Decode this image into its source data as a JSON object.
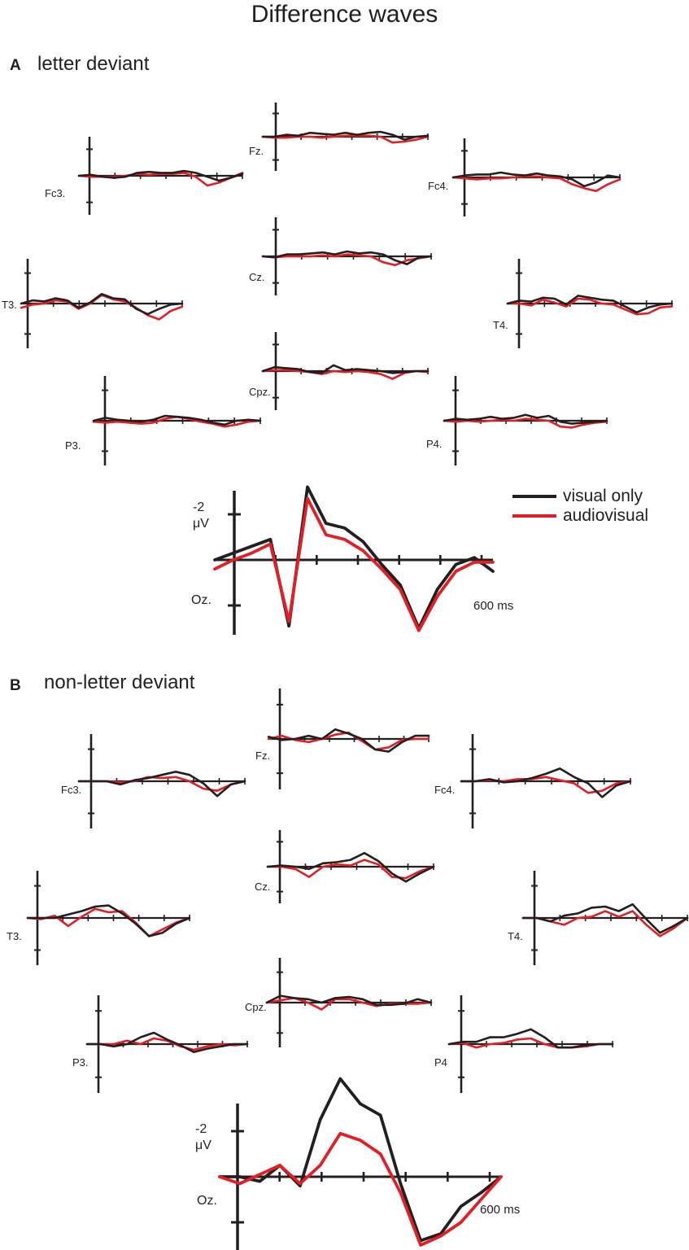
{
  "title": "Difference waves",
  "panels": [
    {
      "letter": "A",
      "title": "letter deviant"
    },
    {
      "letter": "B",
      "title": "non-letter deviant"
    }
  ],
  "legend": {
    "items": [
      {
        "label": "visual only",
        "color": "#231f20"
      },
      {
        "label": "audiovisual",
        "color": "#e31e24"
      }
    ]
  },
  "colors": {
    "visual_only": "#231f20",
    "audiovisual": "#e31e24"
  },
  "chart_data": [
    {
      "type": "line",
      "panel": "A",
      "title": "letter deviant",
      "scale": {
        "y_label": "-2 μV",
        "x_label": "600 ms",
        "y_tick": -2,
        "x_max_ms": 600
      },
      "electrodes": [
        {
          "name": "Fc3.",
          "visual_only": [
            0,
            -0.1,
            0.1,
            0.2,
            0.1,
            -0.3,
            -0.4,
            -0.3,
            -0.3,
            -0.5,
            -0.3,
            0.1,
            0.5,
            0.2,
            -0.2
          ],
          "audiovisual": [
            0,
            0.1,
            0.1,
            0.1,
            0,
            -0.2,
            -0.1,
            -0.2,
            -0.2,
            -0.3,
            0.1,
            1,
            0.7,
            0.2,
            -0.3
          ]
        },
        {
          "name": "Fz.",
          "visual_only": [
            0,
            0,
            -0.2,
            -0.1,
            -0.4,
            -0.3,
            -0.2,
            -0.4,
            -0.2,
            -0.4,
            -0.5,
            -0.2,
            0.3,
            0,
            -0.1
          ],
          "audiovisual": [
            0,
            0.1,
            0.1,
            0,
            0,
            0.1,
            0,
            -0.1,
            -0.1,
            -0.1,
            0,
            0.6,
            0.5,
            0.3,
            0
          ]
        },
        {
          "name": "Fc4.",
          "visual_only": [
            0,
            -0.2,
            -0.3,
            -0.3,
            -0.5,
            -0.3,
            -0.2,
            -0.4,
            -0.2,
            -0.1,
            0.2,
            0.9,
            0.5,
            -0.2,
            0
          ],
          "audiovisual": [
            0,
            0.1,
            0.2,
            0.1,
            0.1,
            0,
            -0.1,
            -0.1,
            0,
            0.1,
            0.7,
            1.1,
            1.4,
            0.7,
            0.2
          ]
        },
        {
          "name": "Cz.",
          "visual_only": [
            0,
            0.1,
            -0.2,
            -0.2,
            -0.3,
            -0.4,
            -0.2,
            -0.5,
            -0.3,
            -0.4,
            -0.2,
            0.4,
            0.8,
            0.1,
            0
          ],
          "audiovisual": [
            0,
            0.1,
            0,
            0,
            0,
            -0.1,
            0,
            -0.2,
            -0.1,
            0,
            0.6,
            0.9,
            0.4,
            0.2,
            0
          ]
        },
        {
          "name": "T3.",
          "visual_only": [
            0,
            -0.3,
            -0.2,
            -0.5,
            -0.3,
            0.4,
            -0.1,
            -0.9,
            -0.5,
            -0.4,
            0.5,
            1.0,
            0.5,
            0.1,
            0
          ],
          "audiovisual": [
            0.4,
            0.1,
            0,
            -0.3,
            -0.2,
            0.5,
            0,
            -0.8,
            -0.4,
            -0.2,
            0.4,
            1.1,
            1.5,
            0.7,
            0.3
          ]
        },
        {
          "name": "T4.",
          "visual_only": [
            0,
            -0.3,
            -0.2,
            -0.6,
            -0.5,
            0.1,
            -0.8,
            -0.6,
            -0.4,
            -0.3,
            0.3,
            0.9,
            0.4,
            0.1,
            0
          ],
          "audiovisual": [
            0,
            0,
            0.2,
            -0.4,
            -0.1,
            0.3,
            -0.5,
            -0.4,
            0,
            0.1,
            0.6,
            1.1,
            1.0,
            0.4,
            0.3
          ]
        },
        {
          "name": "Cpz.",
          "visual_only": [
            0,
            -0.4,
            -0.3,
            -0.2,
            0.1,
            0.2,
            -0.6,
            -0.1,
            -0.2,
            -0.1,
            0,
            0.2,
            0.1,
            0,
            0
          ],
          "audiovisual": [
            0,
            -0.1,
            -0.1,
            0,
            0.1,
            0.3,
            0,
            0.1,
            0,
            0.1,
            0.3,
            0.8,
            0.2,
            0,
            0.1
          ]
        },
        {
          "name": "P3.",
          "visual_only": [
            0,
            -0.3,
            -0.1,
            0,
            0.1,
            -0.1,
            -0.5,
            -0.4,
            -0.3,
            -0.1,
            0.2,
            0.4,
            0,
            -0.1,
            0
          ],
          "audiovisual": [
            0.1,
            0.2,
            0.1,
            0.2,
            0.3,
            0.2,
            -0.2,
            -0.4,
            -0.2,
            0.1,
            0.3,
            0.6,
            0.4,
            0.1,
            0
          ]
        },
        {
          "name": "P4.",
          "visual_only": [
            0,
            -0.2,
            -0.1,
            -0.2,
            -0.4,
            -0.2,
            -0.3,
            -0.6,
            -0.3,
            -0.5,
            0.1,
            0.3,
            0.2,
            0.1,
            0
          ],
          "audiovisual": [
            0,
            0.1,
            0,
            0.1,
            0,
            -0.1,
            0,
            -0.2,
            -0.1,
            0,
            0.6,
            0.7,
            0.4,
            0.2,
            0.1
          ]
        },
        {
          "name": "Oz.",
          "visual_only": [
            0,
            -0.3,
            -0.6,
            -0.9,
            2.9,
            -3.2,
            -1.6,
            -1.4,
            -0.8,
            0.2,
            1.1,
            3.0,
            1.3,
            0.2,
            -0.1,
            0.5
          ],
          "audiovisual": [
            0.4,
            0,
            -0.3,
            -0.7,
            2.7,
            -2.7,
            -1.1,
            -0.9,
            -0.4,
            0.4,
            1.3,
            3.1,
            1.6,
            0.5,
            0.1,
            0.1
          ]
        }
      ]
    },
    {
      "type": "line",
      "panel": "B",
      "title": "non-letter deviant",
      "scale": {
        "y_label": "-2 μV",
        "x_label": "600 ms",
        "y_tick": -2,
        "x_max_ms": 600
      },
      "electrodes": [
        {
          "name": "Fc3.",
          "visual_only": [
            0,
            0,
            0,
            0.3,
            -0.1,
            -0.3,
            -0.6,
            -0.9,
            -0.6,
            0.2,
            1.4,
            0.3,
            0
          ],
          "audiovisual": [
            0,
            0,
            0,
            0.1,
            0,
            -0.4,
            -0.3,
            -0.4,
            0,
            0.7,
            0.9,
            0.3,
            0
          ]
        },
        {
          "name": "Fz.",
          "visual_only": [
            -0.2,
            0.1,
            0,
            -0.3,
            0,
            -0.9,
            -0.5,
            0,
            1.0,
            1.2,
            0.3,
            -0.3,
            -0.3
          ],
          "audiovisual": [
            0,
            -0.3,
            0.1,
            0.3,
            0,
            -0.4,
            -0.6,
            0.2,
            1.0,
            0.8,
            0.1,
            0,
            0
          ]
        },
        {
          "name": "Fc4.",
          "visual_only": [
            0,
            0,
            -0.2,
            0.1,
            0,
            -0.3,
            -0.7,
            -1.2,
            -0.4,
            0.2,
            1.5,
            0.4,
            0
          ],
          "audiovisual": [
            0,
            0,
            -0.1,
            0,
            -0.2,
            -0.2,
            -0.4,
            -0.1,
            0.2,
            1.1,
            0.9,
            0.2,
            0
          ]
        },
        {
          "name": "Cz.",
          "visual_only": [
            0,
            -0.1,
            0,
            0.2,
            -0.3,
            -0.4,
            -0.6,
            -1.2,
            -0.5,
            0.6,
            1.3,
            0.6,
            0
          ],
          "audiovisual": [
            0,
            0,
            0.2,
            0.9,
            0,
            -0.2,
            -0.1,
            -0.6,
            -0.2,
            0.9,
            1.0,
            0.4,
            0
          ]
        },
        {
          "name": "T3.",
          "visual_only": [
            0,
            0,
            0,
            -0.3,
            -0.6,
            -1.0,
            -1.1,
            -0.4,
            0.5,
            1.6,
            1.3,
            0.5,
            0
          ],
          "audiovisual": [
            0,
            0.1,
            -0.2,
            0.7,
            -0.1,
            -0.8,
            -0.5,
            -0.6,
            0.4,
            1.6,
            1.0,
            0.4,
            0
          ]
        },
        {
          "name": "T4.",
          "visual_only": [
            0,
            0,
            0.3,
            -0.2,
            -0.4,
            -0.9,
            -1.0,
            -0.6,
            -1.2,
            0.1,
            1.3,
            0.7,
            0
          ],
          "audiovisual": [
            0,
            0,
            0.3,
            0.6,
            0,
            -0.1,
            -0.6,
            -0.1,
            -0.6,
            0.6,
            1.6,
            0.9,
            0
          ]
        },
        {
          "name": "Cpz.",
          "visual_only": [
            0,
            -0.6,
            -0.4,
            -0.3,
            0,
            -0.4,
            -0.5,
            -0.3,
            0.2,
            0.2,
            0.1,
            -0.3,
            0
          ],
          "audiovisual": [
            0,
            -0.2,
            -0.4,
            0,
            0.6,
            -0.3,
            -0.3,
            0,
            0.3,
            0.1,
            0.1,
            0.1,
            0
          ]
        },
        {
          "name": "P3.",
          "visual_only": [
            0,
            0,
            0.2,
            0,
            -0.6,
            -1.0,
            -0.4,
            0.1,
            0.7,
            0.4,
            0.2,
            0,
            0
          ],
          "audiovisual": [
            0,
            0,
            0,
            -0.3,
            0,
            -0.5,
            -0.3,
            0.2,
            0.5,
            0.2,
            0,
            0.1,
            0
          ]
        },
        {
          "name": "P4",
          "visual_only": [
            0,
            -0.2,
            -0.2,
            -0.6,
            -0.6,
            -0.9,
            -1.3,
            -0.6,
            0.3,
            0.3,
            0.1,
            0,
            0
          ],
          "audiovisual": [
            0,
            -0.1,
            0.3,
            0,
            -0.1,
            -0.4,
            -0.5,
            0,
            0.3,
            0.3,
            0.2,
            0,
            0
          ]
        },
        {
          "name": "Oz.",
          "visual_only": [
            0,
            0,
            0.2,
            -0.5,
            0.4,
            -2.5,
            -4.3,
            -3.2,
            -2.7,
            0.3,
            2.8,
            2.5,
            1.3,
            0.7,
            0
          ],
          "audiovisual": [
            0,
            0.3,
            -0.1,
            -0.5,
            0.3,
            -0.5,
            -1.9,
            -1.6,
            -1.0,
            0.7,
            3.0,
            2.6,
            2.0,
            1.0,
            0
          ]
        }
      ]
    }
  ]
}
